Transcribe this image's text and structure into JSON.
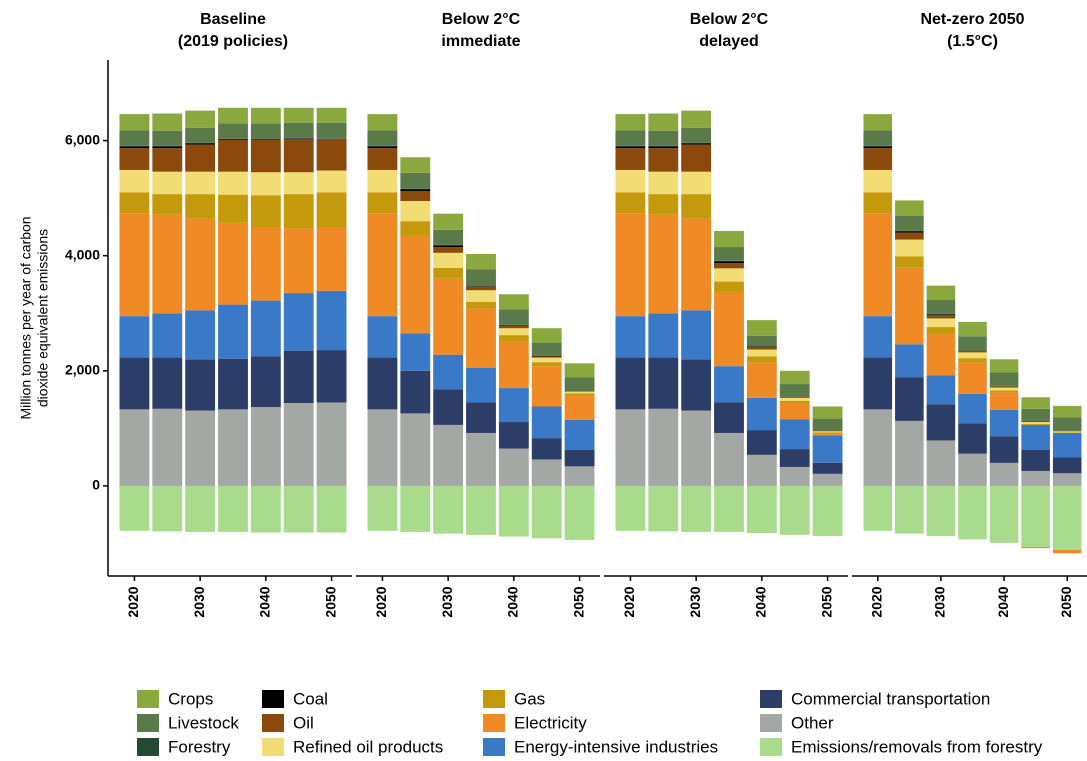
{
  "chart_data": [
    {
      "type": "bar",
      "stacked": true,
      "title": [
        "Baseline",
        "(2019 policies)"
      ],
      "ylabel": [
        "Million tonnes per year of carbon",
        "dioxide equivalent emissions"
      ],
      "categories": [
        "2020",
        null,
        "2030",
        null,
        "2040",
        null,
        "2050"
      ],
      "ylim": [
        -1565,
        7400
      ],
      "yticks": [
        0,
        {
          "value": 2000,
          "label": "2,000"
        },
        {
          "value": 4000,
          "label": "4,000"
        },
        {
          "value": 6000,
          "label": "6,000"
        }
      ],
      "series": [
        {
          "name": "Crops",
          "color": "#8aa83e",
          "values": [
            280,
            300,
            300,
            270,
            270,
            260,
            260
          ]
        },
        {
          "name": "Livestock",
          "color": "#5a7a4a",
          "values": [
            270,
            260,
            260,
            270,
            260,
            260,
            270
          ]
        },
        {
          "name": "Forestry",
          "color": "#234a32",
          "values": [
            10,
            10,
            10,
            10,
            10,
            10,
            10
          ]
        },
        {
          "name": "Coal",
          "color": "#000000",
          "values": [
            30,
            30,
            20,
            10,
            10,
            10,
            0
          ]
        },
        {
          "name": "Oil",
          "color": "#8b4a0c",
          "values": [
            380,
            410,
            470,
            550,
            570,
            580,
            550
          ]
        },
        {
          "name": "Refined oil products",
          "color": "#f2dc74",
          "values": [
            390,
            390,
            390,
            400,
            400,
            380,
            380
          ]
        },
        {
          "name": "Gas",
          "color": "#c49a0c",
          "values": [
            360,
            360,
            430,
            490,
            560,
            600,
            610
          ]
        },
        {
          "name": "Electricity",
          "color": "#f08a24",
          "values": [
            1790,
            1710,
            1590,
            1420,
            1270,
            1120,
            1100
          ]
        },
        {
          "name": "Energy-intensive industries",
          "color": "#3a78c8",
          "values": [
            720,
            770,
            850,
            940,
            970,
            1000,
            1030
          ]
        },
        {
          "name": "Commercial transportation",
          "color": "#2c3e68",
          "values": [
            900,
            890,
            890,
            880,
            880,
            910,
            910
          ]
        },
        {
          "name": "Other",
          "color": "#a4a8a4",
          "values": [
            1330,
            1340,
            1310,
            1330,
            1370,
            1440,
            1450
          ]
        },
        {
          "name": "Emissions/removals from forestry",
          "color": "#a8dc8c",
          "values": [
            -780,
            -790,
            -800,
            -800,
            -810,
            -810,
            -810
          ]
        }
      ]
    },
    {
      "type": "bar",
      "stacked": true,
      "title": [
        "Below 2°C",
        "immediate"
      ],
      "categories": [
        "2020",
        null,
        "2030",
        null,
        "2040",
        null,
        "2050"
      ],
      "ylim": [
        -1565,
        7400
      ],
      "series": [
        {
          "values": [
            280,
            270,
            280,
            270,
            260,
            250,
            240
          ]
        },
        {
          "values": [
            270,
            280,
            260,
            280,
            270,
            220,
            230
          ]
        },
        {
          "values": [
            10,
            10,
            10,
            10,
            10,
            10,
            10
          ]
        },
        {
          "values": [
            30,
            30,
            30,
            10,
            10,
            10,
            0
          ]
        },
        {
          "values": [
            380,
            170,
            100,
            60,
            40,
            20,
            10
          ]
        },
        {
          "values": [
            390,
            350,
            260,
            200,
            120,
            80,
            30
          ]
        },
        {
          "values": [
            360,
            250,
            190,
            120,
            110,
            70,
            40
          ]
        },
        {
          "values": [
            1790,
            1700,
            1320,
            1030,
            810,
            700,
            420
          ]
        },
        {
          "values": [
            720,
            650,
            600,
            600,
            590,
            550,
            520
          ]
        },
        {
          "values": [
            900,
            740,
            620,
            530,
            460,
            370,
            290
          ]
        },
        {
          "values": [
            1330,
            1260,
            1060,
            920,
            650,
            460,
            340
          ]
        },
        {
          "values": [
            -780,
            -800,
            -830,
            -850,
            -880,
            -910,
            -940
          ]
        }
      ]
    },
    {
      "type": "bar",
      "stacked": true,
      "title": [
        "Below 2°C",
        "delayed"
      ],
      "categories": [
        "2020",
        null,
        "2030",
        null,
        "2040",
        null,
        "2050"
      ],
      "ylim": [
        -1565,
        7400
      ],
      "series": [
        {
          "values": [
            280,
            300,
            300,
            280,
            270,
            230,
            210
          ]
        },
        {
          "values": [
            270,
            260,
            260,
            240,
            180,
            210,
            200
          ]
        },
        {
          "values": [
            10,
            10,
            10,
            10,
            10,
            10,
            10
          ]
        },
        {
          "values": [
            30,
            30,
            20,
            30,
            10,
            0,
            0
          ]
        },
        {
          "values": [
            380,
            410,
            470,
            90,
            40,
            20,
            10
          ]
        },
        {
          "values": [
            390,
            390,
            390,
            230,
            120,
            50,
            20
          ]
        },
        {
          "values": [
            360,
            360,
            430,
            180,
            100,
            40,
            20
          ]
        },
        {
          "values": [
            1790,
            1710,
            1590,
            1290,
            620,
            280,
            30
          ]
        },
        {
          "values": [
            720,
            770,
            850,
            630,
            560,
            520,
            480
          ]
        },
        {
          "values": [
            900,
            890,
            890,
            530,
            430,
            310,
            190
          ]
        },
        {
          "values": [
            1330,
            1340,
            1310,
            920,
            540,
            330,
            210
          ]
        },
        {
          "values": [
            -780,
            -790,
            -800,
            -800,
            -820,
            -850,
            -870
          ]
        }
      ]
    },
    {
      "type": "bar",
      "stacked": true,
      "title": [
        "Net-zero 2050",
        "(1.5°C)"
      ],
      "categories": [
        "2020",
        null,
        "2030",
        null,
        "2040",
        null,
        "2050"
      ],
      "ylim": [
        -1565,
        7400
      ],
      "series": [
        {
          "values": [
            280,
            270,
            250,
            250,
            230,
            200,
            200
          ]
        },
        {
          "values": [
            270,
            260,
            240,
            240,
            230,
            210,
            230
          ]
        },
        {
          "values": [
            10,
            10,
            10,
            10,
            10,
            10,
            10
          ]
        },
        {
          "values": [
            30,
            20,
            10,
            0,
            0,
            0,
            0
          ]
        },
        {
          "values": [
            380,
            120,
            60,
            30,
            20,
            10,
            0
          ]
        },
        {
          "values": [
            390,
            290,
            150,
            100,
            50,
            30,
            20
          ]
        },
        {
          "values": [
            360,
            200,
            120,
            70,
            40,
            20,
            10
          ]
        },
        {
          "values": [
            1790,
            1330,
            720,
            550,
            300,
            -20,
            -60
          ]
        },
        {
          "values": [
            720,
            570,
            500,
            510,
            460,
            430,
            420
          ]
        },
        {
          "values": [
            900,
            760,
            630,
            530,
            460,
            370,
            280
          ]
        },
        {
          "values": [
            1330,
            1130,
            790,
            560,
            400,
            260,
            220
          ]
        },
        {
          "values": [
            -780,
            -830,
            -870,
            -930,
            -990,
            -1060,
            -1110
          ]
        }
      ]
    }
  ]
}
